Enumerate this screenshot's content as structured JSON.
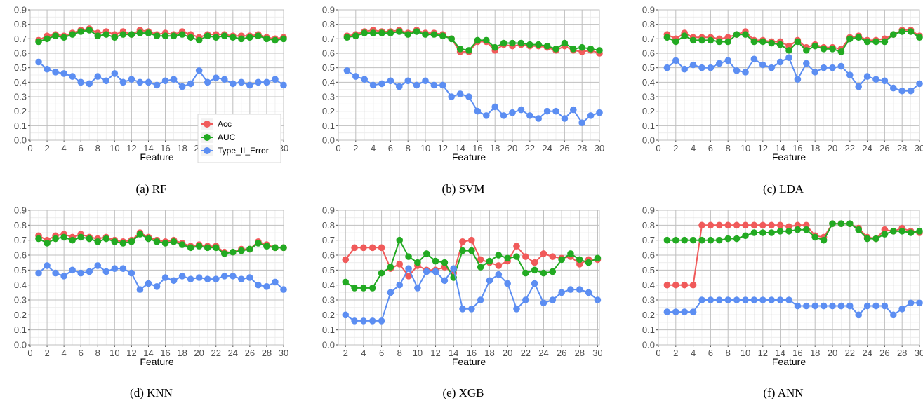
{
  "colors": {
    "Acc": "#f05a5a",
    "AUC": "#22aa22",
    "Type_II_Error": "#5c8ef2"
  },
  "legend": {
    "items": [
      "Acc",
      "AUC",
      "Type_II_Error"
    ],
    "placement": "inside RF panel, bottom-right"
  },
  "chart_data": [
    {
      "type": "line",
      "caption": "(a) RF",
      "xlabel": "Feature",
      "ylabel": "",
      "xlim": [
        0,
        30
      ],
      "xticks": [
        0,
        2,
        4,
        6,
        8,
        10,
        12,
        14,
        16,
        18,
        20,
        22,
        24,
        26,
        28,
        30
      ],
      "ylim": [
        0,
        0.9
      ],
      "yticks": [
        0.0,
        0.1,
        0.2,
        0.3,
        0.4,
        0.5,
        0.6,
        0.7,
        0.8,
        0.9
      ],
      "grid": true,
      "x": [
        1,
        2,
        3,
        4,
        5,
        6,
        7,
        8,
        9,
        10,
        11,
        12,
        13,
        14,
        15,
        16,
        17,
        18,
        19,
        20,
        21,
        22,
        23,
        24,
        25,
        26,
        27,
        28,
        29,
        30
      ],
      "series": [
        {
          "name": "Acc",
          "values": [
            0.69,
            0.72,
            0.73,
            0.72,
            0.74,
            0.76,
            0.77,
            0.74,
            0.75,
            0.73,
            0.75,
            0.73,
            0.76,
            0.75,
            0.73,
            0.74,
            0.73,
            0.75,
            0.73,
            0.71,
            0.73,
            0.73,
            0.73,
            0.72,
            0.72,
            0.72,
            0.73,
            0.71,
            0.7,
            0.71
          ]
        },
        {
          "name": "AUC",
          "values": [
            0.68,
            0.7,
            0.72,
            0.71,
            0.73,
            0.75,
            0.76,
            0.72,
            0.73,
            0.71,
            0.73,
            0.73,
            0.74,
            0.74,
            0.72,
            0.72,
            0.72,
            0.73,
            0.71,
            0.69,
            0.72,
            0.71,
            0.72,
            0.71,
            0.7,
            0.71,
            0.72,
            0.7,
            0.69,
            0.7
          ]
        },
        {
          "name": "Type_II_Error",
          "values": [
            0.54,
            0.49,
            0.47,
            0.46,
            0.44,
            0.4,
            0.39,
            0.44,
            0.41,
            0.46,
            0.4,
            0.42,
            0.4,
            0.4,
            0.38,
            0.41,
            0.42,
            0.37,
            0.39,
            0.48,
            0.4,
            0.43,
            0.42,
            0.39,
            0.4,
            0.38,
            0.4,
            0.4,
            0.42,
            0.38
          ]
        }
      ]
    },
    {
      "type": "line",
      "caption": "(b) SVM",
      "xlabel": "Feature",
      "ylabel": "",
      "xlim": [
        0,
        30
      ],
      "xticks": [
        0,
        2,
        4,
        6,
        8,
        10,
        12,
        14,
        16,
        18,
        20,
        22,
        24,
        26,
        28,
        30
      ],
      "ylim": [
        0,
        0.9
      ],
      "yticks": [
        0.0,
        0.1,
        0.2,
        0.3,
        0.4,
        0.5,
        0.6,
        0.7,
        0.8,
        0.9
      ],
      "grid": true,
      "x": [
        1,
        2,
        3,
        4,
        5,
        6,
        7,
        8,
        9,
        10,
        11,
        12,
        13,
        14,
        15,
        16,
        17,
        18,
        19,
        20,
        21,
        22,
        23,
        24,
        25,
        26,
        27,
        28,
        29,
        30
      ],
      "series": [
        {
          "name": "Acc",
          "values": [
            0.72,
            0.73,
            0.75,
            0.76,
            0.75,
            0.75,
            0.76,
            0.74,
            0.76,
            0.74,
            0.74,
            0.73,
            0.7,
            0.61,
            0.61,
            0.68,
            0.68,
            0.62,
            0.66,
            0.65,
            0.66,
            0.65,
            0.65,
            0.64,
            0.62,
            0.65,
            0.62,
            0.61,
            0.62,
            0.6
          ]
        },
        {
          "name": "AUC",
          "values": [
            0.71,
            0.72,
            0.74,
            0.74,
            0.74,
            0.74,
            0.75,
            0.73,
            0.75,
            0.73,
            0.73,
            0.72,
            0.7,
            0.63,
            0.62,
            0.69,
            0.69,
            0.64,
            0.67,
            0.67,
            0.67,
            0.66,
            0.66,
            0.65,
            0.63,
            0.67,
            0.63,
            0.64,
            0.63,
            0.62
          ]
        },
        {
          "name": "Type_II_Error",
          "values": [
            0.48,
            0.44,
            0.42,
            0.38,
            0.39,
            0.41,
            0.37,
            0.41,
            0.38,
            0.41,
            0.38,
            0.38,
            0.3,
            0.32,
            0.3,
            0.2,
            0.17,
            0.23,
            0.17,
            0.19,
            0.21,
            0.17,
            0.15,
            0.2,
            0.2,
            0.15,
            0.21,
            0.12,
            0.17,
            0.19
          ]
        }
      ]
    },
    {
      "type": "line",
      "caption": "(c) LDA",
      "xlabel": "Feature",
      "ylabel": "",
      "xlim": [
        0,
        30
      ],
      "xticks": [
        0,
        2,
        4,
        6,
        8,
        10,
        12,
        14,
        16,
        18,
        20,
        22,
        24,
        26,
        28,
        30
      ],
      "ylim": [
        0,
        0.9
      ],
      "yticks": [
        0.0,
        0.1,
        0.2,
        0.3,
        0.4,
        0.5,
        0.6,
        0.7,
        0.8,
        0.9
      ],
      "grid": true,
      "x": [
        1,
        2,
        3,
        4,
        5,
        6,
        7,
        8,
        9,
        10,
        11,
        12,
        13,
        14,
        15,
        16,
        17,
        18,
        19,
        20,
        21,
        22,
        23,
        24,
        25,
        26,
        27,
        28,
        29,
        30
      ],
      "series": [
        {
          "name": "Acc",
          "values": [
            0.73,
            0.7,
            0.74,
            0.71,
            0.71,
            0.71,
            0.7,
            0.71,
            0.73,
            0.75,
            0.69,
            0.69,
            0.68,
            0.68,
            0.65,
            0.69,
            0.64,
            0.66,
            0.64,
            0.64,
            0.63,
            0.71,
            0.72,
            0.69,
            0.69,
            0.7,
            0.73,
            0.76,
            0.76,
            0.72
          ]
        },
        {
          "name": "AUC",
          "values": [
            0.71,
            0.68,
            0.72,
            0.69,
            0.69,
            0.69,
            0.68,
            0.68,
            0.73,
            0.73,
            0.68,
            0.68,
            0.67,
            0.66,
            0.62,
            0.68,
            0.62,
            0.65,
            0.63,
            0.63,
            0.61,
            0.7,
            0.71,
            0.68,
            0.68,
            0.68,
            0.73,
            0.75,
            0.75,
            0.71
          ]
        },
        {
          "name": "Type_II_Error",
          "values": [
            0.5,
            0.55,
            0.49,
            0.52,
            0.5,
            0.5,
            0.53,
            0.55,
            0.48,
            0.47,
            0.56,
            0.52,
            0.5,
            0.54,
            0.57,
            0.42,
            0.53,
            0.47,
            0.5,
            0.5,
            0.51,
            0.45,
            0.37,
            0.44,
            0.42,
            0.41,
            0.36,
            0.34,
            0.34,
            0.39
          ]
        }
      ]
    },
    {
      "type": "line",
      "caption": "(d) KNN",
      "xlabel": "Feature",
      "ylabel": "",
      "xlim": [
        0,
        30
      ],
      "xticks": [
        0,
        2,
        4,
        6,
        8,
        10,
        12,
        14,
        16,
        18,
        20,
        22,
        24,
        26,
        28,
        30
      ],
      "ylim": [
        0,
        0.9
      ],
      "yticks": [
        0.0,
        0.1,
        0.2,
        0.3,
        0.4,
        0.5,
        0.6,
        0.7,
        0.8,
        0.9
      ],
      "grid": true,
      "x": [
        1,
        2,
        3,
        4,
        5,
        6,
        7,
        8,
        9,
        10,
        11,
        12,
        13,
        14,
        15,
        16,
        17,
        18,
        19,
        20,
        21,
        22,
        23,
        24,
        25,
        26,
        27,
        28,
        29,
        30
      ],
      "series": [
        {
          "name": "Acc",
          "values": [
            0.73,
            0.7,
            0.73,
            0.74,
            0.72,
            0.74,
            0.72,
            0.71,
            0.72,
            0.7,
            0.69,
            0.7,
            0.75,
            0.72,
            0.7,
            0.69,
            0.7,
            0.68,
            0.66,
            0.67,
            0.66,
            0.66,
            0.62,
            0.62,
            0.64,
            0.64,
            0.69,
            0.67,
            0.65,
            0.65
          ]
        },
        {
          "name": "AUC",
          "values": [
            0.71,
            0.68,
            0.71,
            0.72,
            0.7,
            0.72,
            0.71,
            0.69,
            0.71,
            0.69,
            0.68,
            0.69,
            0.74,
            0.71,
            0.69,
            0.68,
            0.69,
            0.67,
            0.65,
            0.66,
            0.65,
            0.65,
            0.61,
            0.62,
            0.63,
            0.64,
            0.68,
            0.66,
            0.65,
            0.65
          ]
        },
        {
          "name": "Type_II_Error",
          "values": [
            0.48,
            0.53,
            0.48,
            0.46,
            0.5,
            0.48,
            0.49,
            0.53,
            0.49,
            0.51,
            0.51,
            0.48,
            0.37,
            0.41,
            0.39,
            0.45,
            0.43,
            0.46,
            0.44,
            0.45,
            0.44,
            0.44,
            0.46,
            0.46,
            0.44,
            0.45,
            0.4,
            0.39,
            0.42,
            0.37
          ]
        }
      ]
    },
    {
      "type": "line",
      "caption": "(e) XGB",
      "xlabel": "Feature",
      "ylabel": "",
      "xlim": [
        1.2,
        30.2
      ],
      "xticks": [
        2,
        4,
        6,
        8,
        10,
        12,
        14,
        16,
        18,
        20,
        22,
        24,
        26,
        28,
        30
      ],
      "ylim": [
        0,
        0.9
      ],
      "yticks": [
        0.0,
        0.1,
        0.2,
        0.3,
        0.4,
        0.5,
        0.6,
        0.7,
        0.8,
        0.9
      ],
      "grid": true,
      "x": [
        2,
        3,
        4,
        5,
        6,
        7,
        8,
        9,
        10,
        11,
        12,
        13,
        14,
        15,
        16,
        17,
        18,
        19,
        20,
        21,
        22,
        23,
        24,
        25,
        26,
        27,
        28,
        29,
        30
      ],
      "series": [
        {
          "name": "Acc",
          "values": [
            0.57,
            0.65,
            0.65,
            0.65,
            0.65,
            0.51,
            0.54,
            0.46,
            0.53,
            0.5,
            0.5,
            0.52,
            0.48,
            0.69,
            0.7,
            0.57,
            0.55,
            0.53,
            0.56,
            0.66,
            0.59,
            0.55,
            0.61,
            0.59,
            0.58,
            0.59,
            0.54,
            0.57,
            0.57
          ]
        },
        {
          "name": "AUC",
          "values": [
            0.42,
            0.38,
            0.38,
            0.38,
            0.48,
            0.52,
            0.7,
            0.59,
            0.55,
            0.61,
            0.56,
            0.55,
            0.45,
            0.63,
            0.63,
            0.52,
            0.56,
            0.6,
            0.58,
            0.59,
            0.48,
            0.5,
            0.48,
            0.49,
            0.57,
            0.61,
            0.57,
            0.55,
            0.58
          ]
        },
        {
          "name": "Type_II_Error",
          "values": [
            0.2,
            0.16,
            0.16,
            0.16,
            0.16,
            0.35,
            0.4,
            0.51,
            0.38,
            0.49,
            0.49,
            0.43,
            0.51,
            0.24,
            0.24,
            0.3,
            0.43,
            0.47,
            0.41,
            0.24,
            0.3,
            0.41,
            0.28,
            0.3,
            0.35,
            0.37,
            0.37,
            0.35,
            0.3
          ]
        }
      ]
    },
    {
      "type": "line",
      "caption": "(f) ANN",
      "xlabel": "Feature",
      "ylabel": "",
      "xlim": [
        0,
        30
      ],
      "xticks": [
        0,
        2,
        4,
        6,
        8,
        10,
        12,
        14,
        16,
        18,
        20,
        22,
        24,
        26,
        28,
        30
      ],
      "ylim": [
        0,
        0.9
      ],
      "yticks": [
        0.0,
        0.1,
        0.2,
        0.3,
        0.4,
        0.5,
        0.6,
        0.7,
        0.8,
        0.9
      ],
      "grid": true,
      "x": [
        1,
        2,
        3,
        4,
        5,
        6,
        7,
        8,
        9,
        10,
        11,
        12,
        13,
        14,
        15,
        16,
        17,
        18,
        19,
        20,
        21,
        22,
        23,
        24,
        25,
        26,
        27,
        28,
        29,
        30
      ],
      "series": [
        {
          "name": "Acc",
          "values": [
            0.4,
            0.4,
            0.4,
            0.4,
            0.8,
            0.8,
            0.8,
            0.8,
            0.8,
            0.8,
            0.8,
            0.8,
            0.8,
            0.8,
            0.79,
            0.8,
            0.8,
            0.73,
            0.72,
            0.81,
            0.81,
            0.81,
            0.78,
            0.72,
            0.71,
            0.77,
            0.76,
            0.78,
            0.76,
            0.75
          ]
        },
        {
          "name": "AUC",
          "values": [
            0.7,
            0.7,
            0.7,
            0.7,
            0.7,
            0.7,
            0.7,
            0.71,
            0.71,
            0.73,
            0.75,
            0.75,
            0.75,
            0.76,
            0.76,
            0.77,
            0.77,
            0.72,
            0.7,
            0.81,
            0.81,
            0.81,
            0.77,
            0.71,
            0.71,
            0.74,
            0.76,
            0.76,
            0.75,
            0.76
          ]
        },
        {
          "name": "Type_II_Error",
          "values": [
            0.22,
            0.22,
            0.22,
            0.22,
            0.3,
            0.3,
            0.3,
            0.3,
            0.3,
            0.3,
            0.3,
            0.3,
            0.3,
            0.3,
            0.3,
            0.26,
            0.26,
            0.26,
            0.26,
            0.26,
            0.26,
            0.26,
            0.2,
            0.26,
            0.26,
            0.26,
            0.2,
            0.24,
            0.28,
            0.28
          ]
        }
      ]
    }
  ]
}
